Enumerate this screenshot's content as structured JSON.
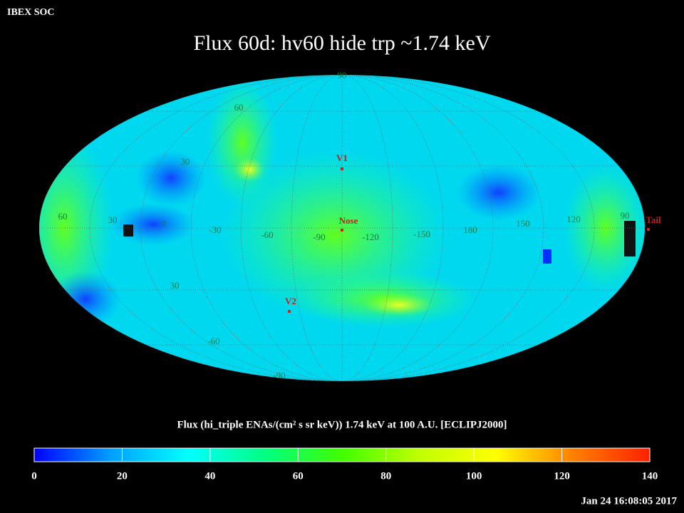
{
  "header": {
    "org": "IBEX SOC",
    "title": "Flux   60d: hv60 hide trp ~1.74 keV"
  },
  "map": {
    "longitude_labels": [
      "60",
      "30",
      "0",
      "-30",
      "-60",
      "-90",
      "-120",
      "-150",
      "180",
      "150",
      "120",
      "90"
    ],
    "latitude_labels": [
      "90",
      "60",
      "30",
      "30",
      "-60",
      "-90"
    ],
    "markers": [
      "V1",
      "Nose",
      "V2",
      "Tail"
    ]
  },
  "colorbar": {
    "title": "Flux (hi_triple ENAs/(cm² s sr keV))  1.74 keV at 100 A.U. [ECLIPJ2000]",
    "xlim": [
      0,
      140
    ],
    "xticks": [
      0,
      20,
      40,
      60,
      80,
      100,
      120,
      140
    ],
    "colors": [
      "#0000ff",
      "#00a0ff",
      "#00ffff",
      "#00ff80",
      "#40ff00",
      "#c0ff00",
      "#ffff00",
      "#ff8000",
      "#ff2000"
    ]
  },
  "timestamp": "Jan 24 16:08:05 2017"
}
